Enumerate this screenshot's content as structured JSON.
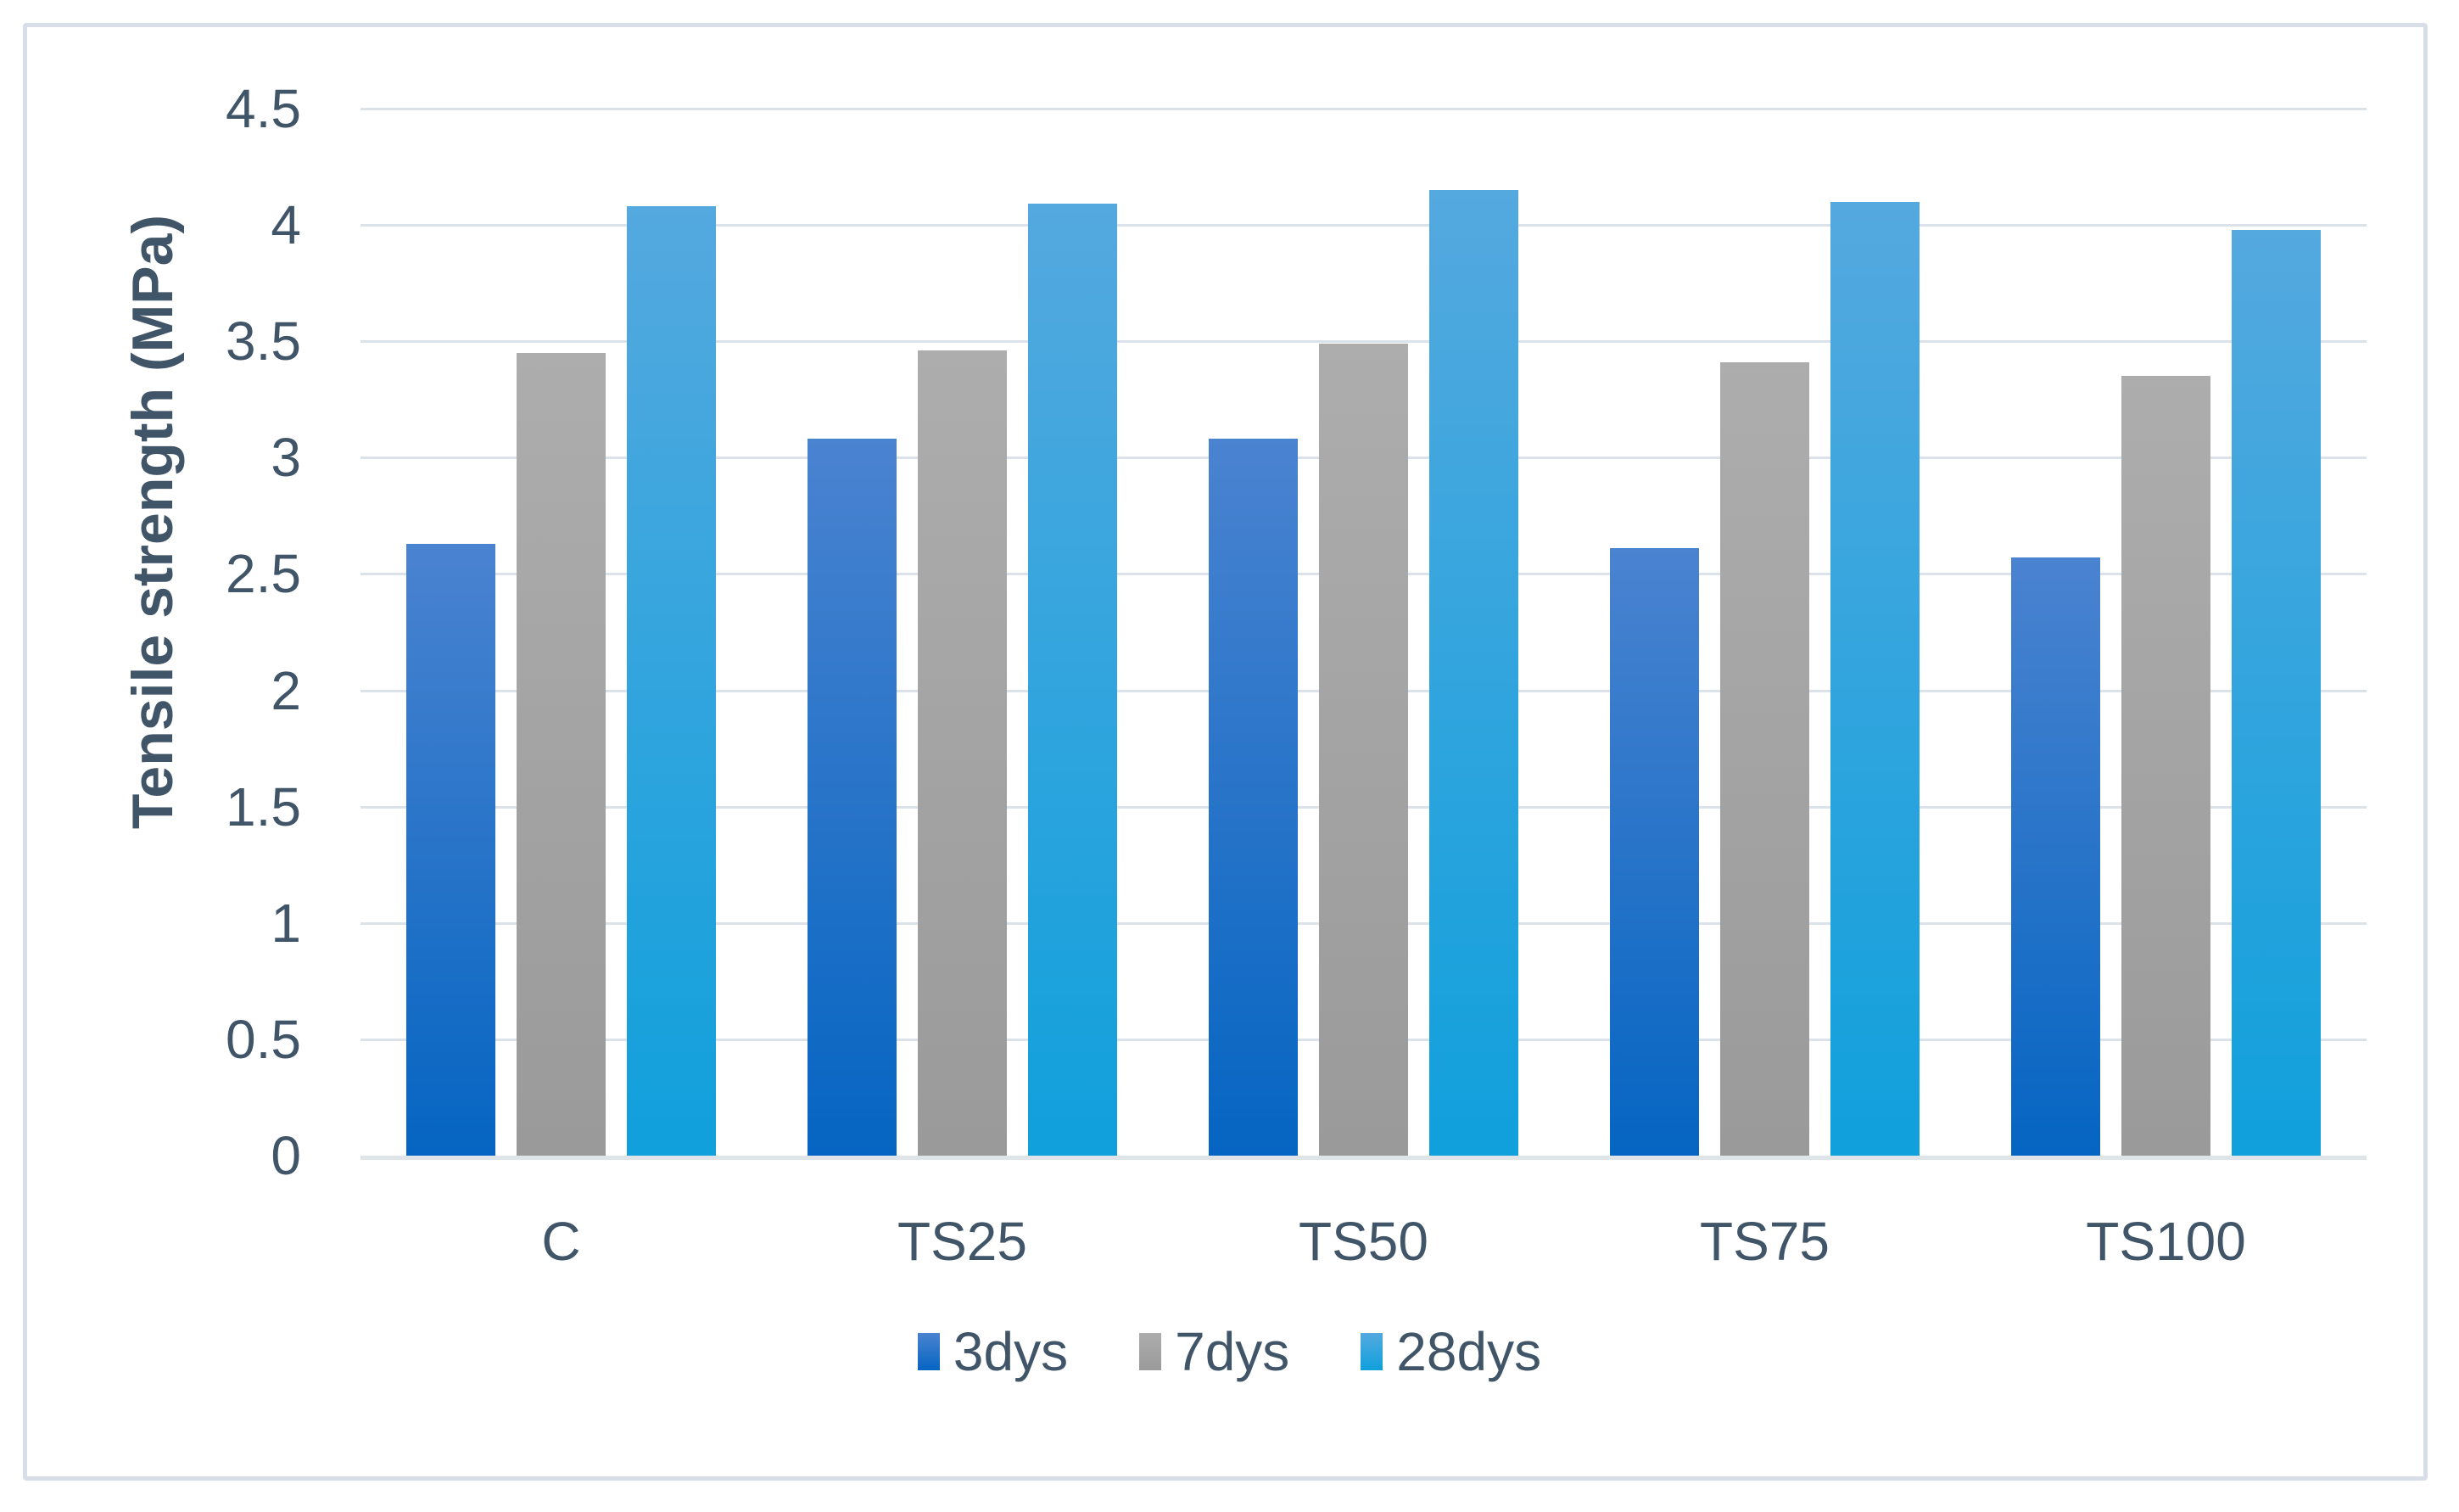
{
  "chart_data": {
    "type": "bar",
    "title": "",
    "categories": [
      "C",
      "TS25",
      "TS50",
      "TS75",
      "TS100"
    ],
    "series": [
      {
        "name": "3dys",
        "values": [
          2.63,
          3.08,
          3.08,
          2.61,
          2.57
        ],
        "color_top": "#4a83d0",
        "color_bottom": "#0565c2"
      },
      {
        "name": "7dys",
        "values": [
          3.45,
          3.46,
          3.49,
          3.41,
          3.35
        ],
        "color_top": "#adadad",
        "color_bottom": "#9a9a9a"
      },
      {
        "name": "28dys",
        "values": [
          4.08,
          4.09,
          4.15,
          4.1,
          3.98
        ],
        "color_top": "#54a9df",
        "color_bottom": "#10a0dc"
      }
    ],
    "xlabel": "",
    "ylabel": "Tensile strength (MPa)",
    "ylim": [
      0,
      4.5
    ],
    "ytick_step": 0.5,
    "ytick_labels": [
      "0",
      "0.5",
      "1",
      "1.5",
      "2",
      "2.5",
      "3",
      "3.5",
      "4",
      "4.5"
    ],
    "grid": true,
    "legend_position": "bottom"
  },
  "colors": {
    "text": "#415569",
    "gridline": "#dbe2ea",
    "axis_line": "#dfe4e9",
    "frame_border": "#d7dee7",
    "background": "#ffffff"
  }
}
